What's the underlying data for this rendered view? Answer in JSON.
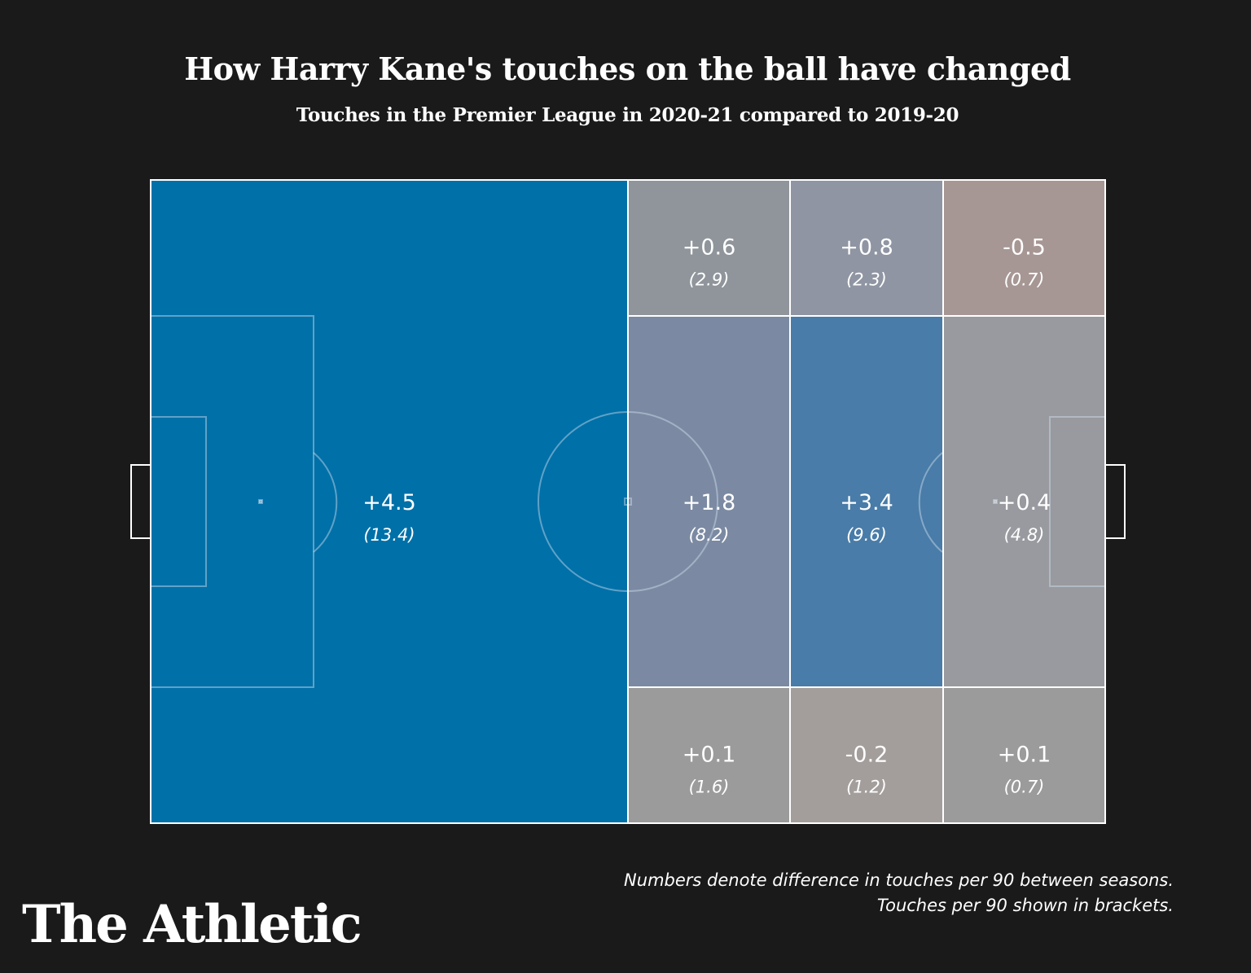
{
  "title": "How Harry Kane's touches on the ball have changed",
  "subtitle": "Touches in the Premier League in 2020-21 compared to 2019-20",
  "chart_data": {
    "type": "heatmap",
    "title": "How Harry Kane's touches on the ball have changed",
    "subtitle": "Touches in the Premier League in 2020-21 compared to 2019-20",
    "zones": [
      {
        "zone": "own-half",
        "value": "+4.5",
        "per90": "(13.4)",
        "color": "#0070a8"
      },
      {
        "zone": "left-middle-third-top",
        "value": "+0.6",
        "per90": "(2.9)",
        "color": "#8f959b"
      },
      {
        "zone": "final-third-inner-top",
        "value": "+0.8",
        "per90": "(2.3)",
        "color": "#8f95a2"
      },
      {
        "zone": "box-edge-top",
        "value": "-0.5",
        "per90": "(0.7)",
        "color": "#a79794"
      },
      {
        "zone": "left-middle-third-center",
        "value": "+1.8",
        "per90": "(8.2)",
        "color": "#7b8aa2"
      },
      {
        "zone": "final-third-inner-center",
        "value": "+3.4",
        "per90": "(9.6)",
        "color": "#497ca8"
      },
      {
        "zone": "box-center",
        "value": "+0.4",
        "per90": "(4.8)",
        "color": "#989a9f"
      },
      {
        "zone": "left-middle-third-bottom",
        "value": "+0.1",
        "per90": "(1.6)",
        "color": "#9b9b9c"
      },
      {
        "zone": "final-third-inner-bottom",
        "value": "-0.2",
        "per90": "(1.2)",
        "color": "#a39e9c"
      },
      {
        "zone": "box-edge-bottom",
        "value": "+0.1",
        "per90": "(0.7)",
        "color": "#9b9b9c"
      }
    ]
  },
  "footnote": {
    "line1": "Numbers denote difference in touches per 90 between seasons.",
    "line2": "Touches per 90 shown in brackets."
  },
  "logo": "The Athletic"
}
